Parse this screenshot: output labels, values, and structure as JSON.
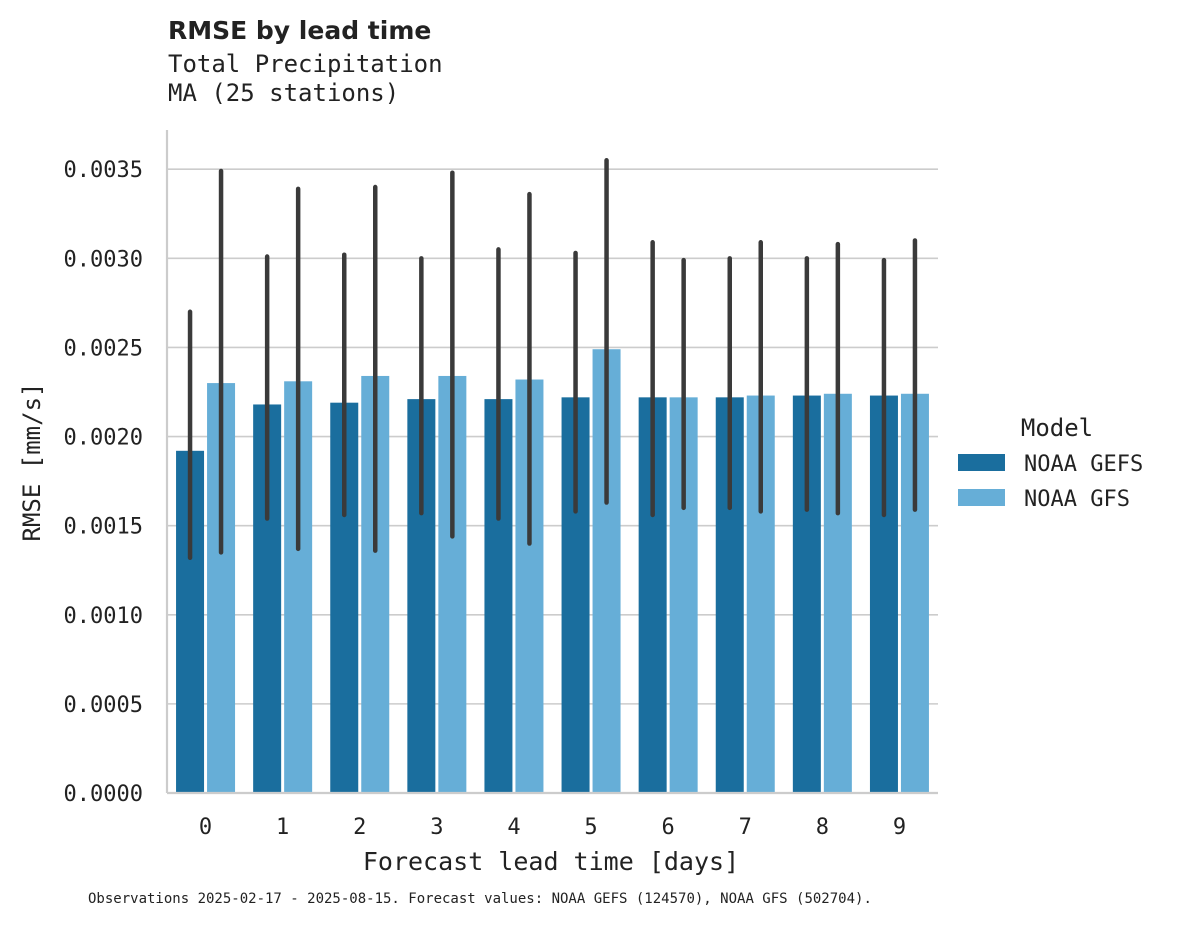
{
  "chart_data": {
    "type": "bar",
    "title": "RMSE by lead time",
    "subtitle_lines": [
      "Total Precipitation",
      "MA (25 stations)"
    ],
    "xlabel": "Forecast lead time [days]",
    "ylabel": "RMSE [mm/s]",
    "categories": [
      "0",
      "1",
      "2",
      "3",
      "4",
      "5",
      "6",
      "7",
      "8",
      "9"
    ],
    "ylim": [
      0,
      0.00372
    ],
    "yticks": [
      "0.0000",
      "0.0005",
      "0.0010",
      "0.0015",
      "0.0020",
      "0.0025",
      "0.0030",
      "0.0035"
    ],
    "ytick_values": [
      0,
      0.0005,
      0.001,
      0.0015,
      0.002,
      0.0025,
      0.003,
      0.0035
    ],
    "grid": "horizontal",
    "legend": {
      "title": "Model",
      "placement": "right"
    },
    "series": [
      {
        "name": "NOAA GEFS",
        "color": "#1a6e9e",
        "values": [
          0.00192,
          0.00218,
          0.00219,
          0.00221,
          0.00221,
          0.00222,
          0.00222,
          0.00222,
          0.00223,
          0.00223
        ],
        "err_low": [
          0.00132,
          0.00154,
          0.00156,
          0.00157,
          0.00154,
          0.00158,
          0.00156,
          0.0016,
          0.00159,
          0.00156
        ],
        "err_high": [
          0.0027,
          0.00301,
          0.00302,
          0.003,
          0.00305,
          0.00303,
          0.00309,
          0.003,
          0.003,
          0.00299
        ]
      },
      {
        "name": "NOAA GFS",
        "color": "#66aed7",
        "values": [
          0.0023,
          0.00231,
          0.00234,
          0.00234,
          0.00232,
          0.00249,
          0.00222,
          0.00223,
          0.00224,
          0.00224
        ],
        "err_low": [
          0.00135,
          0.00137,
          0.00136,
          0.00144,
          0.0014,
          0.00163,
          0.0016,
          0.00158,
          0.00157,
          0.00159
        ],
        "err_high": [
          0.00349,
          0.00339,
          0.0034,
          0.00348,
          0.00336,
          0.00355,
          0.00299,
          0.00309,
          0.00308,
          0.0031
        ]
      }
    ],
    "footnote": "Observations 2025-02-17 - 2025-08-15. Forecast values: NOAA GEFS (124570), NOAA GFS (502704).",
    "colors": {
      "grid": "#cccccc",
      "axis": "#cccccc",
      "errorbar": "#3a3a3a"
    }
  }
}
